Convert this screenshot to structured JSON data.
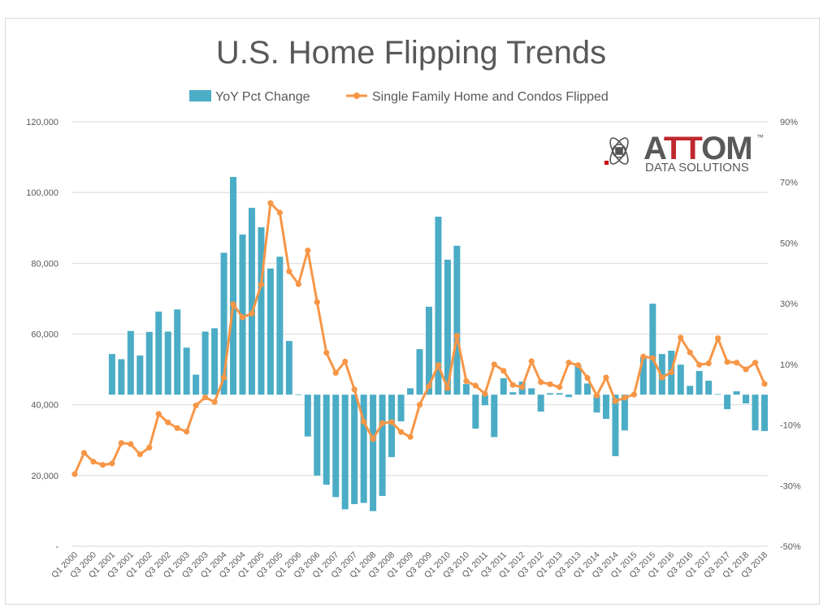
{
  "chart_data": {
    "type": "bar+line",
    "title": "U.S. Home Flipping Trends",
    "legend_position": "top-center",
    "grid": true,
    "x": [
      "Q1 2000",
      "Q2 2000",
      "Q3 2000",
      "Q4 2000",
      "Q1 2001",
      "Q2 2001",
      "Q3 2001",
      "Q4 2001",
      "Q1 2002",
      "Q2 2002",
      "Q3 2002",
      "Q4 2002",
      "Q1 2003",
      "Q2 2003",
      "Q3 2003",
      "Q4 2003",
      "Q1 2004",
      "Q2 2004",
      "Q3 2004",
      "Q4 2004",
      "Q1 2005",
      "Q2 2005",
      "Q3 2005",
      "Q4 2005",
      "Q1 2006",
      "Q2 2006",
      "Q3 2006",
      "Q4 2006",
      "Q1 2007",
      "Q2 2007",
      "Q3 2007",
      "Q4 2007",
      "Q1 2008",
      "Q2 2008",
      "Q3 2008",
      "Q4 2008",
      "Q1 2009",
      "Q2 2009",
      "Q3 2009",
      "Q4 2009",
      "Q1 2010",
      "Q2 2010",
      "Q3 2010",
      "Q4 2010",
      "Q1 2011",
      "Q2 2011",
      "Q3 2011",
      "Q4 2011",
      "Q1 2012",
      "Q2 2012",
      "Q3 2012",
      "Q4 2012",
      "Q1 2013",
      "Q2 2013",
      "Q3 2013",
      "Q4 2013",
      "Q1 2014",
      "Q2 2014",
      "Q3 2014",
      "Q4 2014",
      "Q1 2015",
      "Q2 2015",
      "Q3 2015",
      "Q4 2015",
      "Q1 2016",
      "Q2 2016",
      "Q3 2016",
      "Q4 2016",
      "Q1 2017",
      "Q2 2017",
      "Q3 2017",
      "Q4 2017",
      "Q1 2018",
      "Q2 2018",
      "Q3 2018"
    ],
    "x_tick_labels": [
      "Q1 2000",
      "Q3 2000",
      "Q1 2001",
      "Q3 2001",
      "Q1 2002",
      "Q3 2002",
      "Q1 2003",
      "Q3 2003",
      "Q1 2004",
      "Q3 2004",
      "Q1 2005",
      "Q3 2005",
      "Q1 2006",
      "Q3 2006",
      "Q1 2007",
      "Q3 2007",
      "Q1 2008",
      "Q3 2008",
      "Q1 2009",
      "Q3 2009",
      "Q1 2010",
      "Q3 2010",
      "Q1 2011",
      "Q3 2011",
      "Q1 2012",
      "Q3 2012",
      "Q1 2013",
      "Q3 2013",
      "Q1 2014",
      "Q3 2014",
      "Q1 2015",
      "Q3 2015",
      "Q1 2016",
      "Q3 2016",
      "Q1 2017",
      "Q3 2017",
      "Q1 2018",
      "Q3 2018"
    ],
    "y_left": {
      "range": [
        0,
        120000
      ],
      "tick_labels": [
        "-",
        "20,000",
        "40,000",
        "60,000",
        "80,000",
        "100,000",
        "120,000"
      ]
    },
    "y_right": {
      "range": [
        -50,
        90
      ],
      "unit": "%",
      "tick_labels": [
        "-50%",
        "-30%",
        "-10%",
        "10%",
        "30%",
        "50%",
        "70%",
        "90%"
      ]
    },
    "series": [
      {
        "name": "YoY Pct Change",
        "type": "bar",
        "axis": "right",
        "color": "#4BACC6",
        "values": [
          null,
          null,
          null,
          null,
          13.4,
          11.7,
          21.0,
          12.9,
          20.7,
          27.4,
          20.8,
          28.1,
          15.5,
          6.6,
          20.8,
          21.9,
          46.8,
          71.8,
          52.8,
          61.6,
          55.2,
          41.6,
          45.5,
          17.7,
          0.1,
          -13.8,
          -26.7,
          -29.7,
          -33.8,
          -37.8,
          -36.1,
          -35.7,
          -38.4,
          -33.4,
          -20.6,
          -8.8,
          2.1,
          15.0,
          29.0,
          58.7,
          44.5,
          49.1,
          3.5,
          -11.2,
          -3.5,
          -14.0,
          5.4,
          0.8,
          4.3,
          2.1,
          -5.6,
          0.5,
          0.5,
          -0.8,
          9.6,
          3.7,
          -5.9,
          -8.0,
          -20.3,
          -11.8,
          0.2,
          12.3,
          30.0,
          13.4,
          14.5,
          9.9,
          2.9,
          7.8,
          4.6,
          0.2,
          -4.8,
          1.1,
          -2.9,
          -11.8,
          -12.0
        ]
      },
      {
        "name": "Single Family Home and Condos Flipped",
        "type": "line",
        "axis": "left",
        "color": "#F79646",
        "values": [
          20400,
          26400,
          23900,
          23000,
          23400,
          29200,
          28900,
          26000,
          27900,
          37400,
          35000,
          33400,
          32400,
          39800,
          42100,
          40800,
          47700,
          68400,
          64700,
          65800,
          74000,
          97000,
          94300,
          77700,
          74100,
          83600,
          69000,
          54700,
          49000,
          52200,
          44300,
          35200,
          30300,
          34800,
          35100,
          32300,
          30900,
          40000,
          45300,
          51200,
          44700,
          59500,
          46700,
          45400,
          43100,
          51400,
          49600,
          45600,
          45000,
          52300,
          46400,
          45800,
          45000,
          51900,
          51200,
          47600,
          42600,
          47700,
          41000,
          42000,
          42900,
          53600,
          53200,
          47700,
          49200,
          59000,
          54800,
          51300,
          51700,
          58800,
          52100,
          51900,
          50000,
          51900,
          45900
        ]
      }
    ]
  },
  "logo": {
    "name": "ATTOM",
    "tagline": "DATA SOLUTIONS",
    "tm": "™"
  }
}
